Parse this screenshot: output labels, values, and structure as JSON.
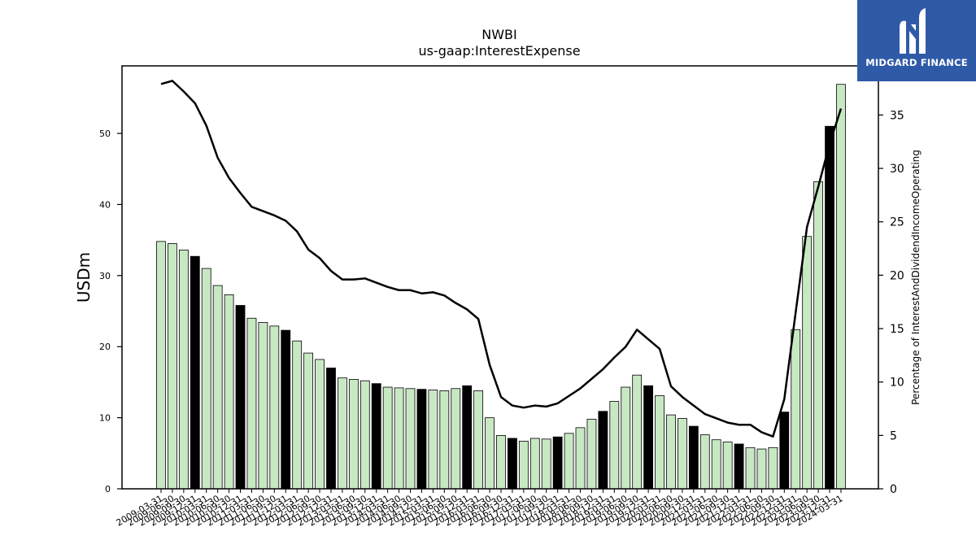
{
  "brand": {
    "name": "MIDGARD FINANCE",
    "icon": "midgard-logo-icon"
  },
  "chart_data": {
    "type": "bar",
    "title": "NWBI",
    "subtitle": "us-gaap:InterestExpense",
    "ylabel": "USDm",
    "y2label": "Percentage of InterestAndDividendIncomeOperating",
    "ylim": [
      0,
      59.5
    ],
    "y2lim": [
      0,
      39.6
    ],
    "yticks": [
      0,
      10,
      20,
      30,
      40,
      50
    ],
    "y2ticks": [
      0,
      5,
      10,
      15,
      20,
      25,
      30,
      35
    ],
    "grid": false,
    "colors": {
      "bar_default": "#c8e8c4",
      "bar_highlight": "#000000",
      "line": "#000000",
      "edge": "#000000"
    },
    "x": [
      "2009-03-31",
      "2009-06-30",
      "2009-09-30",
      "2009-12-31",
      "2010-03-31",
      "2010-06-30",
      "2010-09-30",
      "2010-12-31",
      "2011-03-31",
      "2011-06-30",
      "2011-09-30",
      "2011-12-31",
      "2012-03-31",
      "2012-06-30",
      "2012-09-30",
      "2012-12-31",
      "2013-03-31",
      "2013-06-30",
      "2013-09-30",
      "2013-12-31",
      "2014-03-31",
      "2014-06-30",
      "2014-09-30",
      "2014-12-31",
      "2015-03-31",
      "2015-06-30",
      "2015-09-30",
      "2015-12-31",
      "2016-03-31",
      "2016-06-30",
      "2016-09-30",
      "2016-12-31",
      "2017-03-31",
      "2017-06-30",
      "2017-09-30",
      "2017-12-31",
      "2018-03-31",
      "2018-06-30",
      "2018-09-30",
      "2018-12-31",
      "2019-03-31",
      "2019-06-30",
      "2019-09-30",
      "2019-12-31",
      "2020-03-31",
      "2020-06-30",
      "2020-09-30",
      "2020-12-31",
      "2021-03-31",
      "2021-06-30",
      "2021-09-30",
      "2021-12-31",
      "2022-03-31",
      "2022-06-30",
      "2022-09-30",
      "2022-12-31",
      "2023-03-31",
      "2023-06-30",
      "2023-09-30",
      "2023-12-31",
      "2024-03-31"
    ],
    "xtick_labels": [
      "2009-03-31",
      "2009-06-30",
      "2009-09-30",
      "2009-12-31",
      "2010-03-31",
      "2010-06-30",
      "2010-09-30",
      "2010-12-31",
      "2011-03-31",
      "2011-06-30",
      "2011-09-30",
      "2011-12-31",
      "2012-03-31",
      "2012-06-30",
      "2012-09-30",
      "2012-12-31",
      "2013-03-31",
      "2013-06-30",
      "2013-09-30",
      "2013-12-31",
      "2014-03-31",
      "2014-06-30",
      "2014-09-30",
      "2014-12-31",
      "2015-03-31",
      "2015-06-30",
      "2015-09-30",
      "2015-12-31",
      "2016-03-31",
      "2016-06-30",
      "2016-09-30",
      "2016-12-31",
      "2017-03-31",
      "2017-06-30",
      "2017-09-30",
      "2017-12-31",
      "2018-03-31",
      "2018-06-30",
      "2018-09-30",
      "2018-12-31",
      "2019-03-31",
      "2019-06-30",
      "2019-09-30",
      "2019-12-31",
      "2020-03-31",
      "2020-06-30",
      "2020-09-30",
      "2020-12-31",
      "2021-03-31",
      "2021-06-30",
      "2021-09-30",
      "2021-12-31",
      "2022-03-31",
      "2022-06-30",
      "2022-09-30",
      "2022-12-31",
      "2023-03-31",
      "2023-06-30",
      "2023-09-30",
      "2023-12-31",
      "2024-03-31"
    ],
    "highlight_indices": [
      3,
      7,
      11,
      15,
      19,
      23,
      27,
      31,
      35,
      39,
      43,
      47,
      51,
      55,
      59
    ],
    "series": [
      {
        "type": "bar",
        "axis": "left",
        "values": [
          34.8,
          34.5,
          33.6,
          32.7,
          31.0,
          28.6,
          27.3,
          25.8,
          24.0,
          23.4,
          22.9,
          22.3,
          20.8,
          19.1,
          18.2,
          17.0,
          15.6,
          15.4,
          15.2,
          14.8,
          14.3,
          14.2,
          14.1,
          14.0,
          13.9,
          13.8,
          14.1,
          14.5,
          13.8,
          10.0,
          7.5,
          7.1,
          6.7,
          7.1,
          7.0,
          7.3,
          7.8,
          8.6,
          9.8,
          10.9,
          12.3,
          14.3,
          16.0,
          14.5,
          13.1,
          10.4,
          9.9,
          8.8,
          7.6,
          6.9,
          6.6,
          6.3,
          5.8,
          5.6,
          5.8,
          10.8,
          22.4,
          35.5,
          43.2,
          51.0,
          56.9
        ]
      },
      {
        "type": "line",
        "axis": "right",
        "values": [
          37.9,
          38.2,
          37.2,
          36.1,
          34.0,
          31.0,
          29.1,
          27.7,
          26.4,
          26.0,
          25.6,
          25.1,
          24.1,
          22.4,
          21.6,
          20.4,
          19.6,
          19.6,
          19.7,
          19.3,
          18.9,
          18.6,
          18.6,
          18.3,
          18.4,
          18.1,
          17.4,
          16.8,
          15.9,
          11.6,
          8.6,
          7.8,
          7.6,
          7.8,
          7.7,
          8.0,
          8.7,
          9.4,
          10.3,
          11.2,
          12.3,
          13.3,
          14.9,
          14.0,
          13.1,
          9.6,
          8.6,
          7.8,
          7.0,
          6.6,
          6.2,
          6.0,
          6.0,
          5.3,
          4.9,
          8.4,
          16.5,
          24.5,
          28.3,
          32.3,
          35.6
        ]
      }
    ]
  }
}
